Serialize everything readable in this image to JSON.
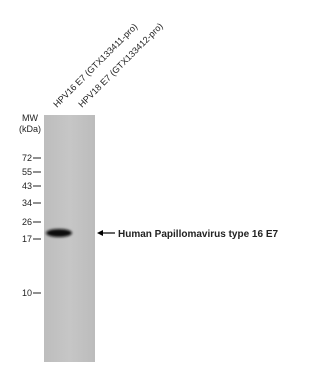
{
  "lanes": [
    "HPV16 E7 (GTX133411-pro)",
    "HPV18 E7 (GTX133412-pro)"
  ],
  "mw_label": "MW",
  "mw_unit": "(kDa)",
  "markers": [
    72,
    55,
    43,
    34,
    26,
    17,
    10
  ],
  "band_annotation": "Human Papillomavirus type 16 E7"
}
